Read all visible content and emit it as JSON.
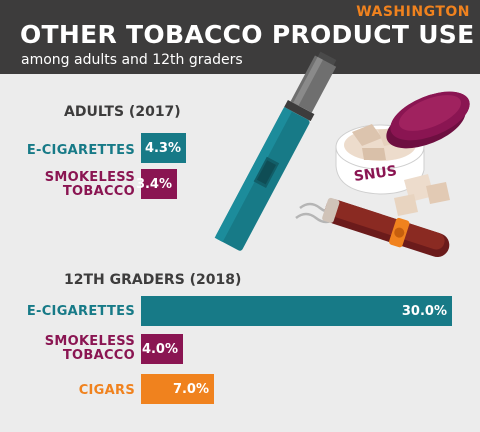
{
  "header": {
    "state": "WASHINGTON",
    "title": "OTHER TOBACCO PRODUCT USE",
    "subtitle": "among adults and 12th graders"
  },
  "illustration": {
    "snus_label": "SNUS",
    "icons": [
      "e-cigarette-icon",
      "snus-tin-icon",
      "cigar-icon"
    ]
  },
  "colors": {
    "teal": "#177a87",
    "maroon": "#8a1552",
    "orange": "#f0821e",
    "header_bg": "#3d3c3c",
    "background": "#ececec"
  },
  "chart_data": [
    {
      "type": "bar",
      "orientation": "horizontal",
      "title": "ADULTS (2017)",
      "categories": [
        "E-CIGARETTES",
        "SMOKELESS TOBACCO"
      ],
      "category_lines": [
        [
          "E-CIGARETTES"
        ],
        [
          "SMOKELESS",
          "TOBACCO"
        ]
      ],
      "values": [
        4.3,
        3.4
      ],
      "value_labels": [
        "4.3%",
        "3.4%"
      ],
      "unit": "%",
      "colors": [
        "#177a87",
        "#8a1552"
      ]
    },
    {
      "type": "bar",
      "orientation": "horizontal",
      "title": "12TH GRADERS (2018)",
      "categories": [
        "E-CIGARETTES",
        "SMOKELESS TOBACCO",
        "CIGARS"
      ],
      "category_lines": [
        [
          "E-CIGARETTES"
        ],
        [
          "SMOKELESS",
          "TOBACCO"
        ],
        [
          "CIGARS"
        ]
      ],
      "values": [
        30.0,
        4.0,
        7.0
      ],
      "value_labels": [
        "30.0%",
        "4.0%",
        "7.0%"
      ],
      "unit": "%",
      "colors": [
        "#177a87",
        "#8a1552",
        "#f0821e"
      ]
    }
  ]
}
